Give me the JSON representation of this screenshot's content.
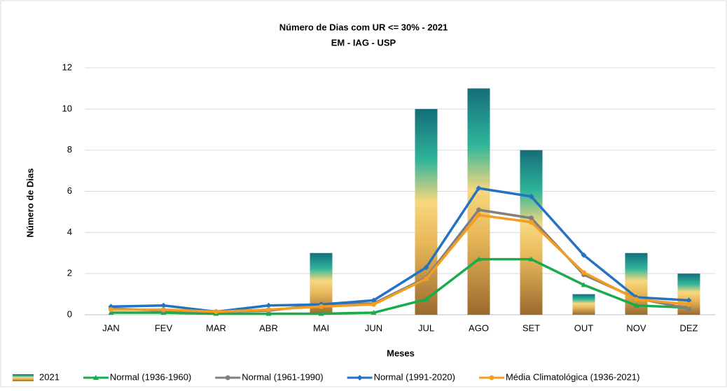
{
  "chart_data": {
    "type": "bar-line",
    "title": "Número de Dias com UR <= 30% - 2021",
    "subtitle": "EM - IAG - USP",
    "y_label": "Número de Dias",
    "x_label": "Meses",
    "categories": [
      "JAN",
      "FEV",
      "MAR",
      "ABR",
      "MAI",
      "JUN",
      "JUL",
      "AGO",
      "SET",
      "OUT",
      "NOV",
      "DEZ"
    ],
    "ylim": [
      0,
      12
    ],
    "yticks": [
      0,
      2,
      4,
      6,
      8,
      10,
      12
    ],
    "grid": true,
    "legend": "bottom",
    "series": [
      {
        "name": "2021",
        "kind": "bar",
        "color": "#1a6f7a",
        "values": [
          0,
          0,
          0,
          0,
          3,
          0,
          10,
          11,
          8,
          1,
          3,
          2
        ]
      },
      {
        "name": "Normal (1936-1960)",
        "kind": "line",
        "marker": "triangle",
        "color": "#1aab4b",
        "values": [
          0.1,
          0.1,
          0.05,
          0.05,
          0.05,
          0.1,
          0.75,
          2.7,
          2.7,
          1.45,
          0.45,
          0.35
        ]
      },
      {
        "name": "Normal (1961-1990)",
        "kind": "line",
        "marker": "circle",
        "color": "#808080",
        "values": [
          0.3,
          0.2,
          0.15,
          0.2,
          0.5,
          0.55,
          1.8,
          5.1,
          4.7,
          1.95,
          0.8,
          0.3
        ]
      },
      {
        "name": "Normal (1991-2020)",
        "kind": "line",
        "marker": "diamond",
        "color": "#2472c2",
        "values": [
          0.4,
          0.45,
          0.15,
          0.45,
          0.5,
          0.7,
          2.3,
          6.15,
          5.75,
          2.9,
          0.85,
          0.7
        ]
      },
      {
        "name": "Média Climatológica (1936-2021)",
        "kind": "line",
        "marker": "circle",
        "color": "#f59d1e",
        "values": [
          0.25,
          0.25,
          0.15,
          0.25,
          0.4,
          0.5,
          1.75,
          4.85,
          4.5,
          2.05,
          0.75,
          0.5
        ]
      }
    ]
  }
}
